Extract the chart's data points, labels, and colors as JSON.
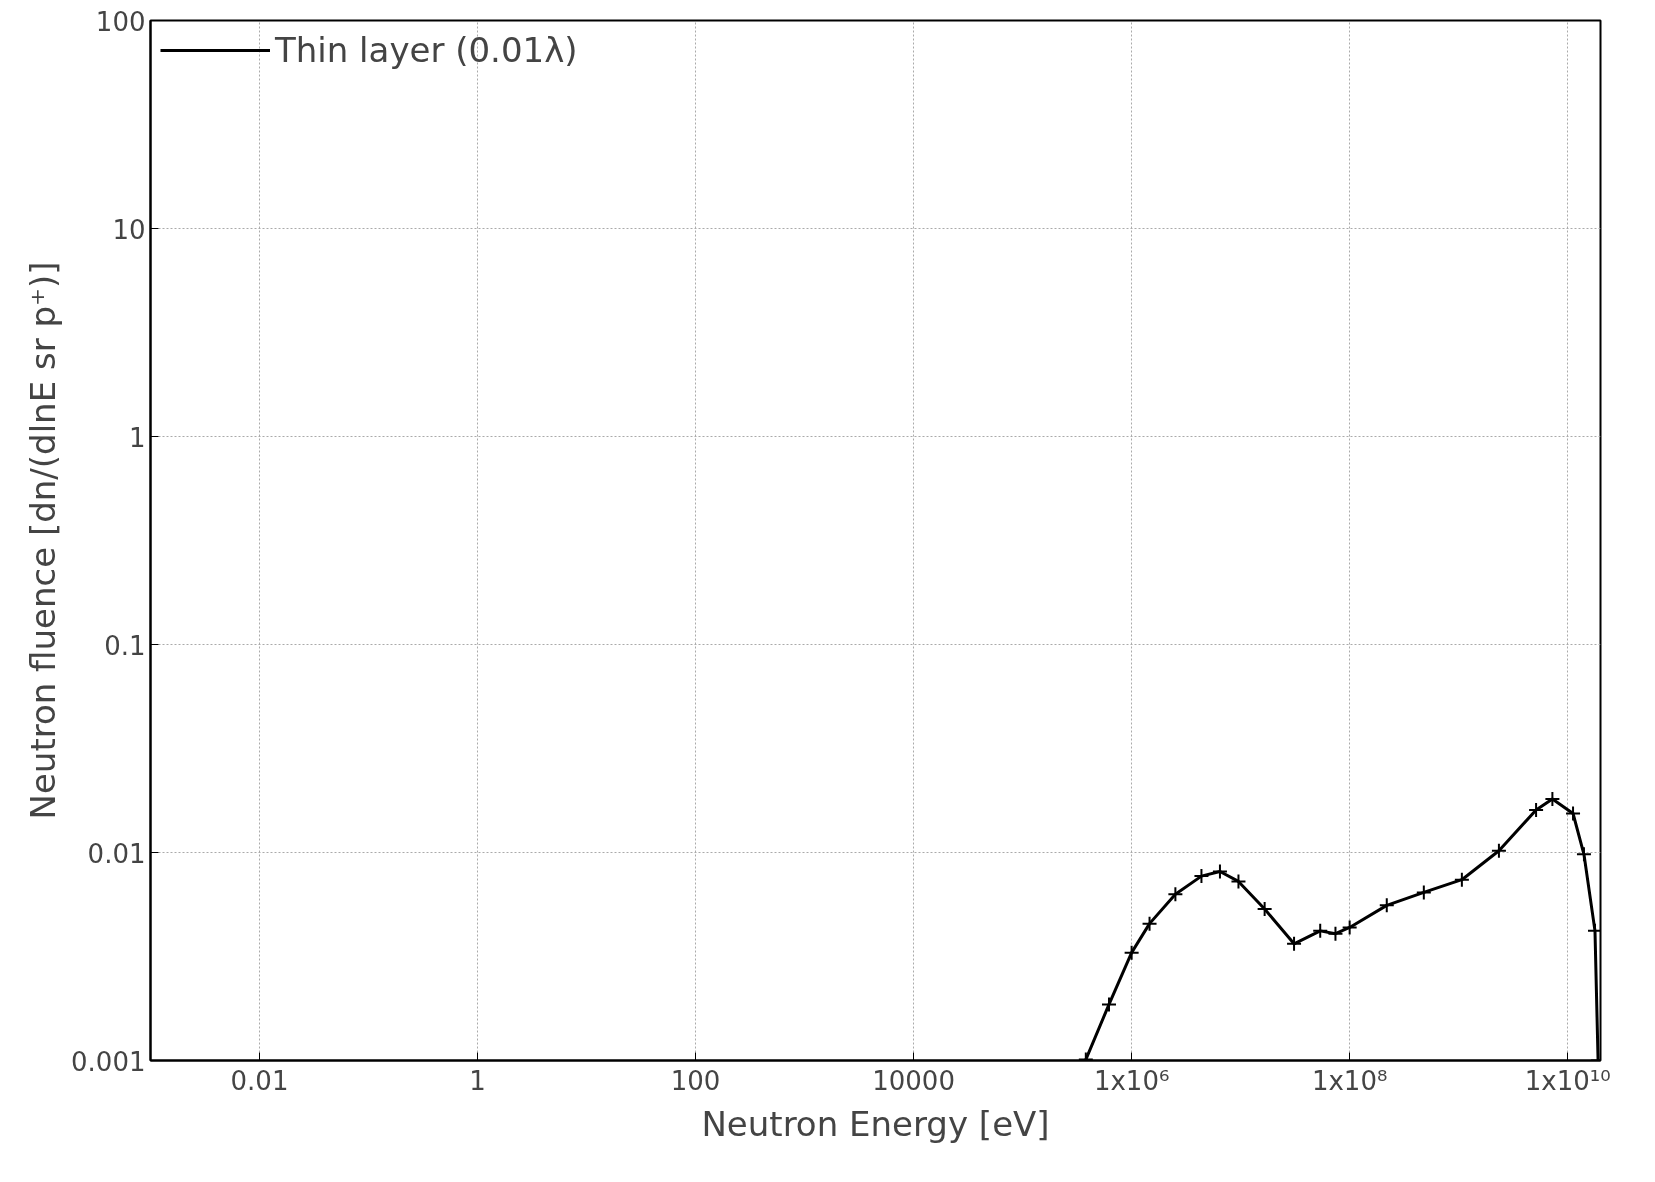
{
  "chart_data": {
    "type": "line",
    "xlabel": "Neutron Energy [eV]",
    "ylabel": "Neutron fluence [dn/(dlnE sr p⁺)]",
    "log": "xy",
    "grid": true,
    "legend": "top left",
    "marker": "cross",
    "line_style": "solid",
    "xlim": [
      0.001,
      20000000000
    ],
    "ylim": [
      0.001,
      100
    ],
    "xticks": [
      0.01,
      1,
      100,
      10000,
      {
        "value": 1000000,
        "label": "1x10⁶"
      },
      {
        "value": 100000000,
        "label": "1x10⁸"
      },
      {
        "value": 10000000000,
        "label": "1x10¹⁰"
      }
    ],
    "yticks": [
      0.001,
      0.01,
      0.1,
      1,
      10,
      100
    ],
    "series": [
      {
        "name": "Thin layer (0.01λ)",
        "color": "#000000",
        "x": [
          380000,
          620000,
          1000000,
          1460000,
          2520000,
          4370000,
          6460000,
          9550000,
          16600000,
          30900000,
          53700000,
          74100000,
          100000000,
          219000000,
          479000000,
          1070000000,
          2340000000,
          5130000000,
          7240000000,
          11200000000,
          14100000000,
          17800000000,
          19000000000
        ],
        "values": [
          0.00101,
          0.00186,
          0.0033,
          0.00455,
          0.0063,
          0.0077,
          0.0081,
          0.00726,
          0.00535,
          0.00364,
          0.0042,
          0.00407,
          0.00436,
          0.00557,
          0.00643,
          0.0074,
          0.0102,
          0.016,
          0.0181,
          0.0154,
          0.0098,
          0.0042,
          0.001
        ]
      }
    ]
  }
}
